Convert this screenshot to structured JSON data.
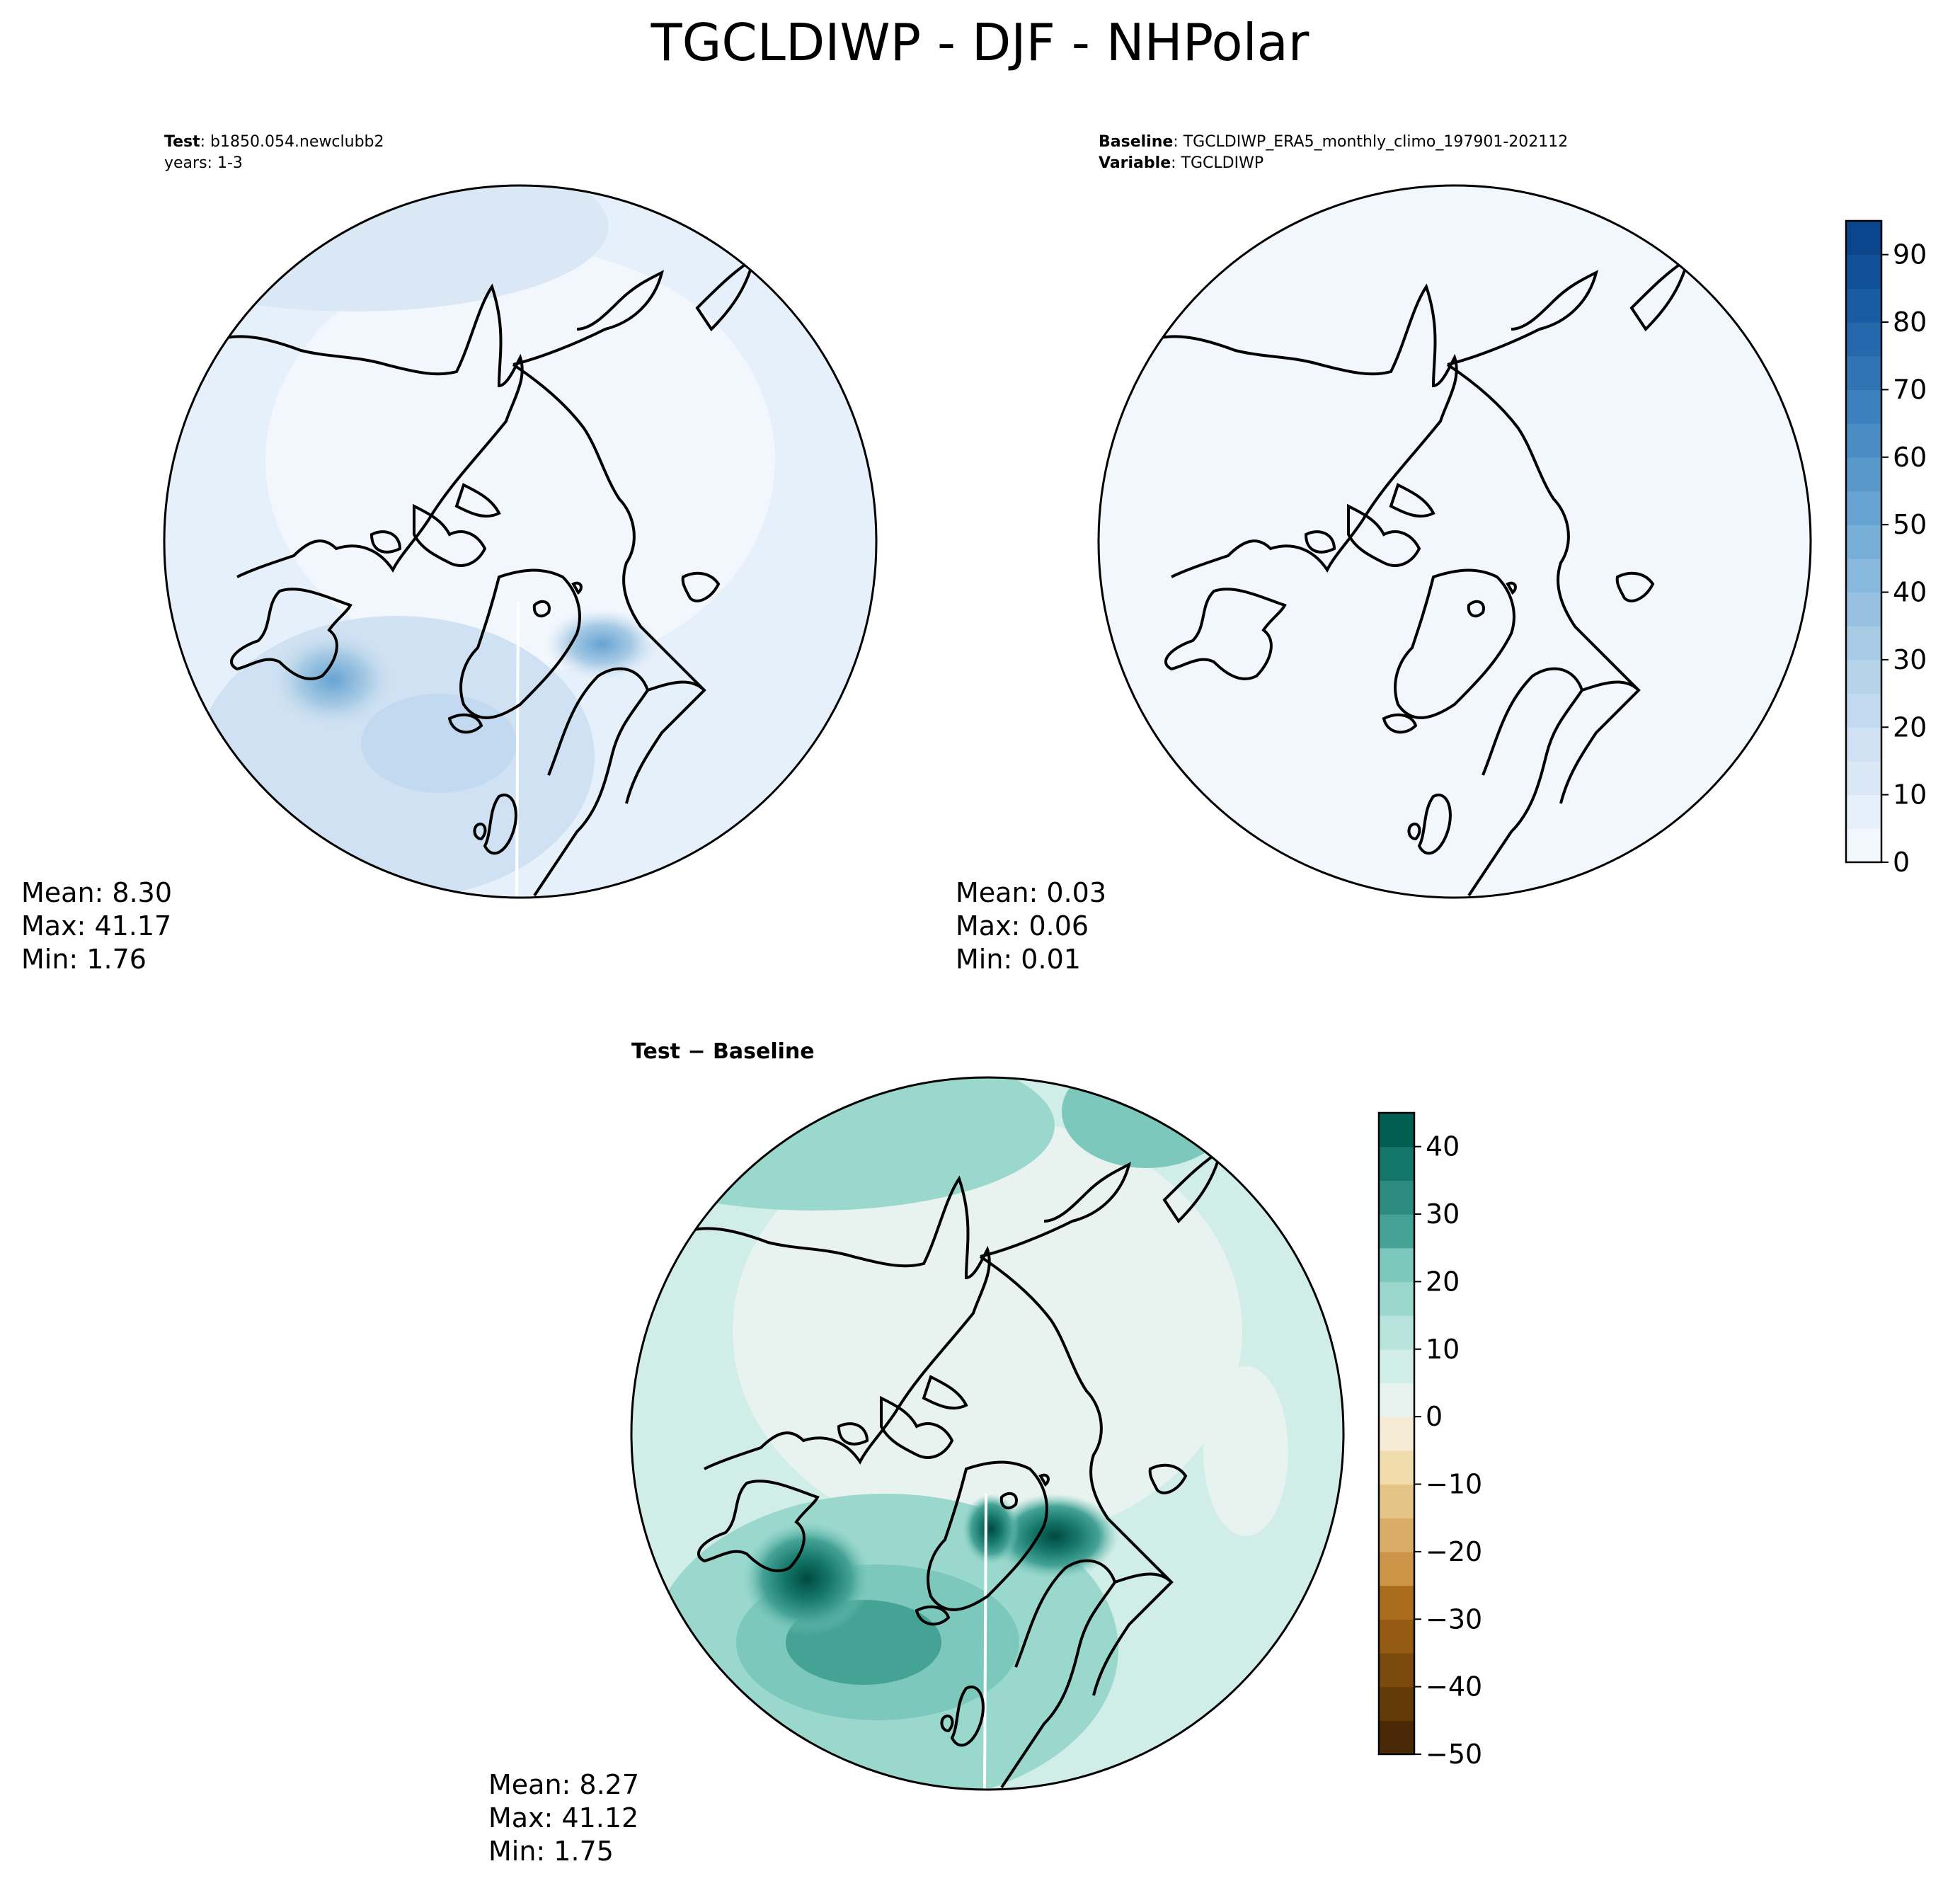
{
  "figure": {
    "title": "TGCLDIWP - DJF - NHPolar"
  },
  "panels": {
    "test": {
      "label_bold": "Test",
      "label_sep": ": ",
      "label_value": "b1850.054.newclubb2",
      "years": "years: 1-3",
      "mean": "Mean:  8.30",
      "max": "Max: 41.17",
      "min": "Min:  1.76"
    },
    "baseline": {
      "label_bold": "Baseline",
      "label_sep": ": ",
      "label_value": "TGCLDIWP_ERA5_monthly_climo_197901-202112",
      "variable_bold": "Variable",
      "variable_value": "TGCLDIWP",
      "mean": "Mean:  0.03",
      "max": "Max:  0.06",
      "min": "Min:  0.01"
    },
    "diff": {
      "title": "Test − Baseline",
      "mean": "Mean:  8.27",
      "max": "Max: 41.12",
      "min": "Min:  1.75"
    }
  },
  "chart_data": [
    {
      "type": "heatmap",
      "panel": "test",
      "projection": "north polar stereographic",
      "field": "TGCLDIWP",
      "stats": {
        "mean": 8.3,
        "max": 41.17,
        "min": 1.76
      },
      "colorbar": {
        "ticks": [
          "0",
          "10",
          "20",
          "30",
          "40",
          "50",
          "60",
          "70",
          "80",
          "90"
        ],
        "range": [
          0,
          95
        ],
        "step": 5,
        "cmap": "Blues"
      }
    },
    {
      "type": "heatmap",
      "panel": "baseline",
      "projection": "north polar stereographic",
      "field": "TGCLDIWP",
      "stats": {
        "mean": 0.03,
        "max": 0.06,
        "min": 0.01
      },
      "colorbar": {
        "ticks": [
          "0",
          "10",
          "20",
          "30",
          "40",
          "50",
          "60",
          "70",
          "80",
          "90"
        ],
        "range": [
          0,
          95
        ],
        "step": 5,
        "cmap": "Blues"
      }
    },
    {
      "type": "heatmap",
      "panel": "diff",
      "projection": "north polar stereographic",
      "field": "TGCLDIWP difference",
      "stats": {
        "mean": 8.27,
        "max": 41.12,
        "min": 1.75
      },
      "colorbar": {
        "ticks": [
          "40",
          "30",
          "20",
          "10",
          "0",
          "−10",
          "−20",
          "−30",
          "−40",
          "−50"
        ],
        "range": [
          -50,
          45
        ],
        "step": 5,
        "cmap": "BrBG"
      }
    }
  ],
  "colors": {
    "blues": [
      "#f2f7fd",
      "#e6f0fa",
      "#dae8f6",
      "#cfe1f2",
      "#c3d9ef",
      "#b7d3ea",
      "#a8cbe5",
      "#98c1e1",
      "#88b8dc",
      "#77aed8",
      "#67a3d2",
      "#5898cb",
      "#4a8dc4",
      "#3c81bd",
      "#3074b5",
      "#2568ac",
      "#1a5ca3",
      "#11519a",
      "#0b468c",
      "#083a7b"
    ],
    "brbg": [
      "#4a2a06",
      "#643b07",
      "#7c4a0c",
      "#955b12",
      "#ab6d1c",
      "#bd8031",
      "#cc9548",
      "#d9ad66",
      "#e5c587",
      "#f0dcad",
      "#f6ecd5",
      "#f5f5ef",
      "#e8f3f0",
      "#d1ede8",
      "#b7e3dc",
      "#9ad7cd",
      "#7cc8bc",
      "#5fb6a9",
      "#45a396",
      "#2c8c80",
      "#147569",
      "#035e52",
      "#014a3f"
    ]
  }
}
